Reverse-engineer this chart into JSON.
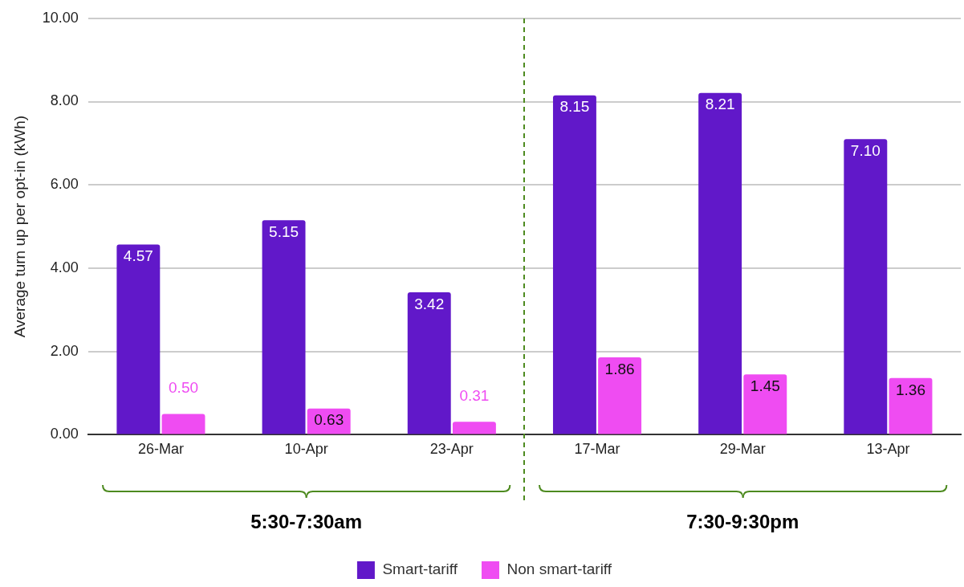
{
  "chart_data": {
    "type": "bar",
    "ylabel": "Average turn up per opt-in (kWh)",
    "categories": [
      "26-Mar",
      "10-Apr",
      "23-Apr",
      "17-Mar",
      "29-Mar",
      "13-Apr"
    ],
    "series": [
      {
        "name": "Smart-tariff",
        "color": "#6118c9",
        "values": [
          4.57,
          5.15,
          3.42,
          8.15,
          8.21,
          7.1
        ],
        "value_labels": [
          "4.57",
          "5.15",
          "3.42",
          "8.15",
          "8.21",
          "7.10"
        ]
      },
      {
        "name": "Non smart-tariff",
        "color": "#ef4cf2",
        "values": [
          0.5,
          0.63,
          0.31,
          1.86,
          1.45,
          1.36
        ],
        "value_labels": [
          "0.50",
          "0.63",
          "0.31",
          "1.86",
          "1.45",
          "1.36"
        ]
      }
    ],
    "ylim": [
      0,
      10
    ],
    "yticks": [
      {
        "value": 0,
        "label": "0.00"
      },
      {
        "value": 2,
        "label": "2.00"
      },
      {
        "value": 4,
        "label": "4.00"
      },
      {
        "value": 6,
        "label": "6.00"
      },
      {
        "value": 8,
        "label": "8.00"
      },
      {
        "value": 10,
        "label": "10.00"
      }
    ],
    "grid": "y",
    "legend": "bottom",
    "annotations": [
      "5:30-7:30am",
      "7:30-9:30pm"
    ]
  }
}
